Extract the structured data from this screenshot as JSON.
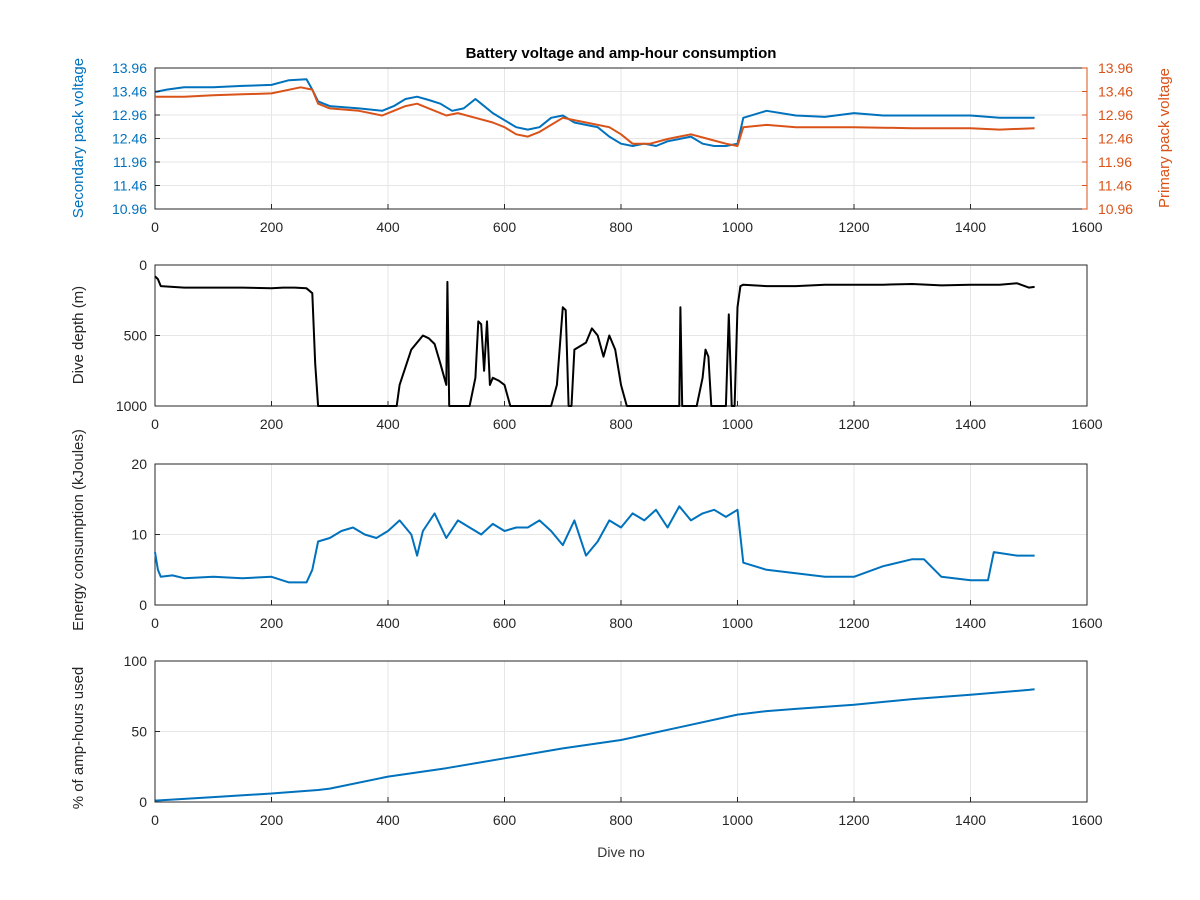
{
  "figure": {
    "title": "Battery voltage and amp-hour consumption",
    "xlabel": "Dive no"
  },
  "colors": {
    "blue": "#0072BD",
    "orange": "#D95319",
    "black": "#000000",
    "grid": "#e6e6e6"
  },
  "chart_data": [
    {
      "type": "line",
      "title": "Battery voltage and amp-hour consumption",
      "xlabel": "",
      "ylabel": "Secondary pack voltage",
      "ylabel_right": "Primary pack voltage",
      "xlim": [
        0,
        1600
      ],
      "ylim": [
        10.96,
        13.96
      ],
      "xticks": [
        0,
        200,
        400,
        600,
        800,
        1000,
        1200,
        1400,
        1600
      ],
      "yticks": [
        10.96,
        11.46,
        11.96,
        12.46,
        12.96,
        13.46,
        13.96
      ],
      "ytick_labels": [
        "10.96",
        "11.46",
        "11.96",
        "12.46",
        "12.96",
        "13.46",
        "13.96"
      ],
      "grid": true,
      "series": [
        {
          "name": "Secondary pack voltage",
          "axis": "left",
          "color": "#0072BD",
          "x": [
            0,
            20,
            50,
            100,
            150,
            200,
            230,
            260,
            270,
            280,
            300,
            350,
            390,
            410,
            430,
            450,
            470,
            490,
            510,
            530,
            550,
            560,
            580,
            600,
            620,
            640,
            660,
            680,
            700,
            720,
            740,
            760,
            780,
            800,
            820,
            840,
            860,
            880,
            900,
            920,
            940,
            960,
            980,
            1000,
            1010,
            1050,
            1100,
            1150,
            1200,
            1250,
            1300,
            1350,
            1400,
            1450,
            1500,
            1510
          ],
          "y": [
            13.45,
            13.5,
            13.55,
            13.55,
            13.58,
            13.6,
            13.7,
            13.72,
            13.5,
            13.25,
            13.15,
            13.1,
            13.05,
            13.15,
            13.3,
            13.35,
            13.28,
            13.2,
            13.05,
            13.1,
            13.3,
            13.2,
            13.0,
            12.85,
            12.7,
            12.65,
            12.7,
            12.9,
            12.95,
            12.8,
            12.75,
            12.7,
            12.5,
            12.35,
            12.3,
            12.35,
            12.3,
            12.4,
            12.45,
            12.5,
            12.35,
            12.3,
            12.3,
            12.35,
            12.9,
            13.05,
            12.95,
            12.92,
            13.0,
            12.95,
            12.95,
            12.95,
            12.95,
            12.9,
            12.9,
            12.9
          ]
        },
        {
          "name": "Primary pack voltage",
          "axis": "right",
          "color": "#D95319",
          "x": [
            0,
            20,
            50,
            100,
            150,
            200,
            250,
            270,
            280,
            300,
            350,
            390,
            410,
            430,
            450,
            470,
            500,
            520,
            550,
            580,
            600,
            620,
            640,
            660,
            700,
            740,
            780,
            800,
            820,
            850,
            880,
            900,
            920,
            950,
            980,
            1000,
            1010,
            1050,
            1100,
            1200,
            1300,
            1400,
            1450,
            1510
          ],
          "y": [
            13.35,
            13.35,
            13.35,
            13.38,
            13.4,
            13.42,
            13.55,
            13.5,
            13.2,
            13.1,
            13.05,
            12.95,
            13.05,
            13.15,
            13.2,
            13.1,
            12.95,
            13.0,
            12.9,
            12.8,
            12.7,
            12.55,
            12.5,
            12.6,
            12.9,
            12.8,
            12.7,
            12.55,
            12.35,
            12.35,
            12.45,
            12.5,
            12.55,
            12.45,
            12.35,
            12.3,
            12.7,
            12.75,
            12.7,
            12.7,
            12.68,
            12.68,
            12.65,
            12.68
          ]
        }
      ]
    },
    {
      "type": "line",
      "title": "",
      "xlabel": "",
      "ylabel": "Dive depth (m)",
      "xlim": [
        0,
        1600
      ],
      "ylim": [
        0,
        1000
      ],
      "y_reversed": true,
      "xticks": [
        0,
        200,
        400,
        600,
        800,
        1000,
        1200,
        1400,
        1600
      ],
      "yticks": [
        0,
        500,
        1000
      ],
      "ytick_labels": [
        "0",
        "500",
        "1000"
      ],
      "grid": true,
      "series": [
        {
          "name": "",
          "color": "#000000",
          "x": [
            0,
            5,
            10,
            50,
            100,
            150,
            200,
            220,
            240,
            260,
            270,
            275,
            280,
            300,
            350,
            400,
            415,
            420,
            440,
            460,
            470,
            480,
            490,
            500,
            502,
            505,
            510,
            520,
            540,
            550,
            555,
            560,
            565,
            570,
            575,
            580,
            590,
            600,
            610,
            620,
            650,
            680,
            690,
            700,
            705,
            710,
            715,
            720,
            740,
            750,
            760,
            770,
            780,
            790,
            800,
            810,
            820,
            850,
            880,
            900,
            902,
            905,
            908,
            910,
            920,
            930,
            940,
            945,
            950,
            955,
            960,
            980,
            985,
            990,
            995,
            1000,
            1005,
            1010,
            1050,
            1100,
            1150,
            1200,
            1250,
            1300,
            1350,
            1400,
            1450,
            1480,
            1500,
            1510
          ],
          "y": [
            80,
            100,
            150,
            160,
            160,
            160,
            165,
            160,
            160,
            165,
            200,
            700,
            1000,
            1000,
            1000,
            1000,
            1000,
            850,
            600,
            500,
            520,
            560,
            700,
            850,
            120,
            1000,
            1000,
            1000,
            1000,
            800,
            400,
            420,
            750,
            400,
            850,
            800,
            820,
            850,
            1000,
            1000,
            1000,
            1000,
            850,
            300,
            320,
            1000,
            1000,
            600,
            550,
            450,
            500,
            650,
            500,
            600,
            850,
            1000,
            1000,
            1000,
            1000,
            1000,
            300,
            1000,
            1000,
            1000,
            1000,
            1000,
            800,
            600,
            650,
            1000,
            1000,
            1000,
            350,
            1000,
            1000,
            300,
            150,
            140,
            150,
            150,
            140,
            140,
            140,
            135,
            145,
            140,
            140,
            130,
            160,
            155
          ]
        }
      ]
    },
    {
      "type": "line",
      "title": "",
      "xlabel": "",
      "ylabel": "Energy consumption (kJoules)",
      "xlim": [
        0,
        1600
      ],
      "ylim": [
        0,
        20
      ],
      "xticks": [
        0,
        200,
        400,
        600,
        800,
        1000,
        1200,
        1400,
        1600
      ],
      "yticks": [
        0,
        10,
        20
      ],
      "ytick_labels": [
        "0",
        "10",
        "20"
      ],
      "grid": true,
      "series": [
        {
          "name": "",
          "color": "#0072BD",
          "x": [
            0,
            5,
            10,
            30,
            50,
            100,
            150,
            200,
            230,
            260,
            270,
            280,
            300,
            320,
            340,
            360,
            380,
            400,
            420,
            440,
            450,
            460,
            480,
            500,
            520,
            540,
            560,
            580,
            600,
            620,
            640,
            660,
            680,
            700,
            720,
            740,
            760,
            780,
            800,
            820,
            840,
            860,
            880,
            900,
            920,
            940,
            960,
            980,
            1000,
            1010,
            1050,
            1100,
            1150,
            1200,
            1250,
            1300,
            1320,
            1350,
            1400,
            1430,
            1440,
            1480,
            1510
          ],
          "y": [
            7.5,
            5,
            4,
            4.2,
            3.8,
            4,
            3.8,
            4,
            3.2,
            3.2,
            5,
            9,
            9.5,
            10.5,
            11,
            10,
            9.5,
            10.5,
            12,
            10,
            7,
            10.5,
            13,
            9.5,
            12,
            11,
            10,
            11.5,
            10.5,
            11,
            11,
            12,
            10.5,
            8.5,
            12,
            7,
            9,
            12,
            11,
            13,
            12,
            13.5,
            11,
            14,
            12,
            13,
            13.5,
            12.5,
            13.5,
            6,
            5,
            4.5,
            4,
            4,
            5.5,
            6.5,
            6.5,
            4,
            3.5,
            3.5,
            7.5,
            7,
            7
          ]
        }
      ]
    },
    {
      "type": "line",
      "title": "",
      "xlabel": "Dive no",
      "ylabel": "% of amp-hours used",
      "xlim": [
        0,
        1600
      ],
      "ylim": [
        0,
        100
      ],
      "xticks": [
        0,
        200,
        400,
        600,
        800,
        1000,
        1200,
        1400,
        1600
      ],
      "yticks": [
        0,
        50,
        100
      ],
      "ytick_labels": [
        "0",
        "50",
        "100"
      ],
      "grid": true,
      "series": [
        {
          "name": "",
          "color": "#0072BD",
          "x": [
            0,
            100,
            200,
            280,
            300,
            400,
            500,
            600,
            700,
            800,
            900,
            1000,
            1050,
            1100,
            1200,
            1300,
            1400,
            1500,
            1510
          ],
          "y": [
            1,
            3.5,
            6,
            8.5,
            9.5,
            18,
            24,
            31,
            38,
            44,
            53,
            62,
            64.5,
            66,
            69,
            73,
            76,
            79.5,
            80
          ]
        }
      ]
    }
  ]
}
